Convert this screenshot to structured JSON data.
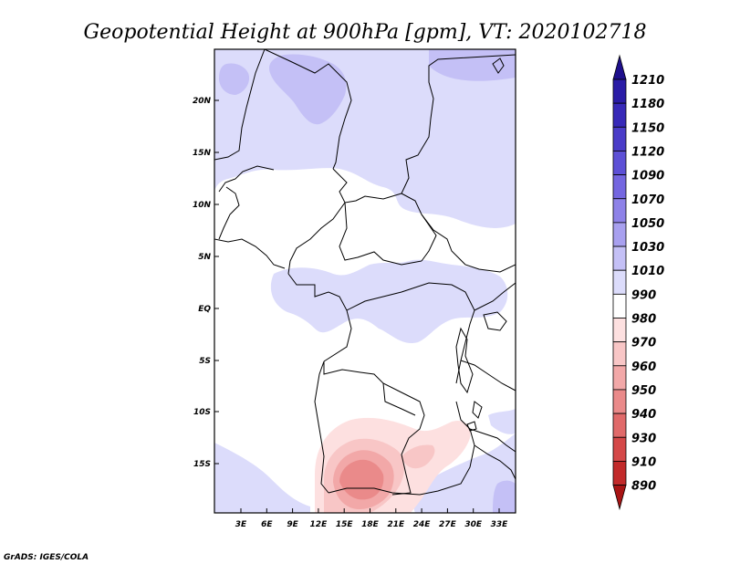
{
  "title": "Geopotential Height at 900hPa [gpm], VT: 2020102718",
  "footer": "GrADS: IGES/COLA",
  "map": {
    "lat_ticks": [
      "20N",
      "15N",
      "10N",
      "5N",
      "EQ",
      "5S",
      "10S",
      "15S"
    ],
    "lon_ticks": [
      "3E",
      "6E",
      "9E",
      "12E",
      "15E",
      "18E",
      "21E",
      "24E",
      "27E",
      "30E",
      "33E"
    ]
  },
  "colorbar": {
    "levels": [
      "1210",
      "1180",
      "1150",
      "1120",
      "1090",
      "1070",
      "1050",
      "1030",
      "1010",
      "990",
      "980",
      "970",
      "960",
      "950",
      "940",
      "930",
      "910",
      "890"
    ],
    "colors": [
      "#1e0f8c",
      "#2a1ca6",
      "#3729b8",
      "#4a3cc8",
      "#5d50d6",
      "#7466e0",
      "#8e82e8",
      "#a8a0ef",
      "#c4c0f6",
      "#dcdcfb",
      "#ffffff",
      "#fde0e0",
      "#f8c6c6",
      "#f2a8a8",
      "#ea8a8a",
      "#e06a6a",
      "#d44848",
      "#c22a2a",
      "#a81414"
    ]
  }
}
